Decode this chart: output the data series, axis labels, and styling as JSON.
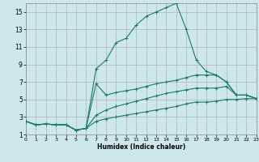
{
  "xlabel": "Humidex (Indice chaleur)",
  "bg_color": "#cce8e8",
  "grid_color": "#b8b0b0",
  "line_color": "#1a7a6e",
  "xlim": [
    0,
    23
  ],
  "ylim": [
    1,
    16
  ],
  "xticks": [
    0,
    1,
    2,
    3,
    4,
    5,
    6,
    7,
    8,
    9,
    10,
    11,
    12,
    13,
    14,
    15,
    16,
    17,
    18,
    19,
    20,
    21,
    22,
    23
  ],
  "yticks": [
    1,
    3,
    5,
    7,
    9,
    11,
    13,
    15
  ],
  "lines": [
    {
      "x": [
        0,
        1,
        2,
        3,
        4,
        5,
        6,
        7,
        8,
        9,
        10,
        11,
        12,
        13,
        14,
        15,
        16,
        17,
        18,
        19,
        20,
        21,
        22,
        23
      ],
      "y": [
        2.5,
        2.1,
        2.2,
        2.1,
        2.1,
        1.5,
        1.7,
        8.5,
        9.5,
        11.5,
        12.0,
        13.5,
        14.5,
        15.0,
        15.5,
        16.0,
        13.0,
        9.5,
        8.2,
        7.8,
        7.0,
        5.5,
        5.5,
        5.1
      ]
    },
    {
      "x": [
        0,
        1,
        2,
        3,
        4,
        5,
        6,
        7,
        8,
        9,
        10,
        11,
        12,
        13,
        14,
        15,
        16,
        17,
        18,
        19,
        20,
        21,
        22,
        23
      ],
      "y": [
        2.5,
        2.1,
        2.2,
        2.1,
        2.1,
        1.5,
        1.7,
        6.8,
        5.5,
        5.8,
        6.0,
        6.2,
        6.5,
        6.8,
        7.0,
        7.2,
        7.5,
        7.8,
        7.8,
        7.8,
        7.0,
        5.5,
        5.5,
        5.1
      ]
    },
    {
      "x": [
        0,
        1,
        2,
        3,
        4,
        5,
        6,
        7,
        8,
        9,
        10,
        11,
        12,
        13,
        14,
        15,
        16,
        17,
        18,
        19,
        20,
        21,
        22,
        23
      ],
      "y": [
        2.5,
        2.1,
        2.2,
        2.1,
        2.1,
        1.5,
        1.7,
        3.2,
        3.8,
        4.2,
        4.5,
        4.8,
        5.1,
        5.4,
        5.7,
        5.9,
        6.1,
        6.3,
        6.3,
        6.3,
        6.5,
        5.5,
        5.5,
        5.1
      ]
    },
    {
      "x": [
        0,
        1,
        2,
        3,
        4,
        5,
        6,
        7,
        8,
        9,
        10,
        11,
        12,
        13,
        14,
        15,
        16,
        17,
        18,
        19,
        20,
        21,
        22,
        23
      ],
      "y": [
        2.5,
        2.1,
        2.2,
        2.1,
        2.1,
        1.5,
        1.7,
        2.5,
        2.8,
        3.0,
        3.2,
        3.4,
        3.6,
        3.8,
        4.0,
        4.2,
        4.5,
        4.7,
        4.7,
        4.8,
        5.0,
        5.0,
        5.1,
        5.1
      ]
    }
  ]
}
